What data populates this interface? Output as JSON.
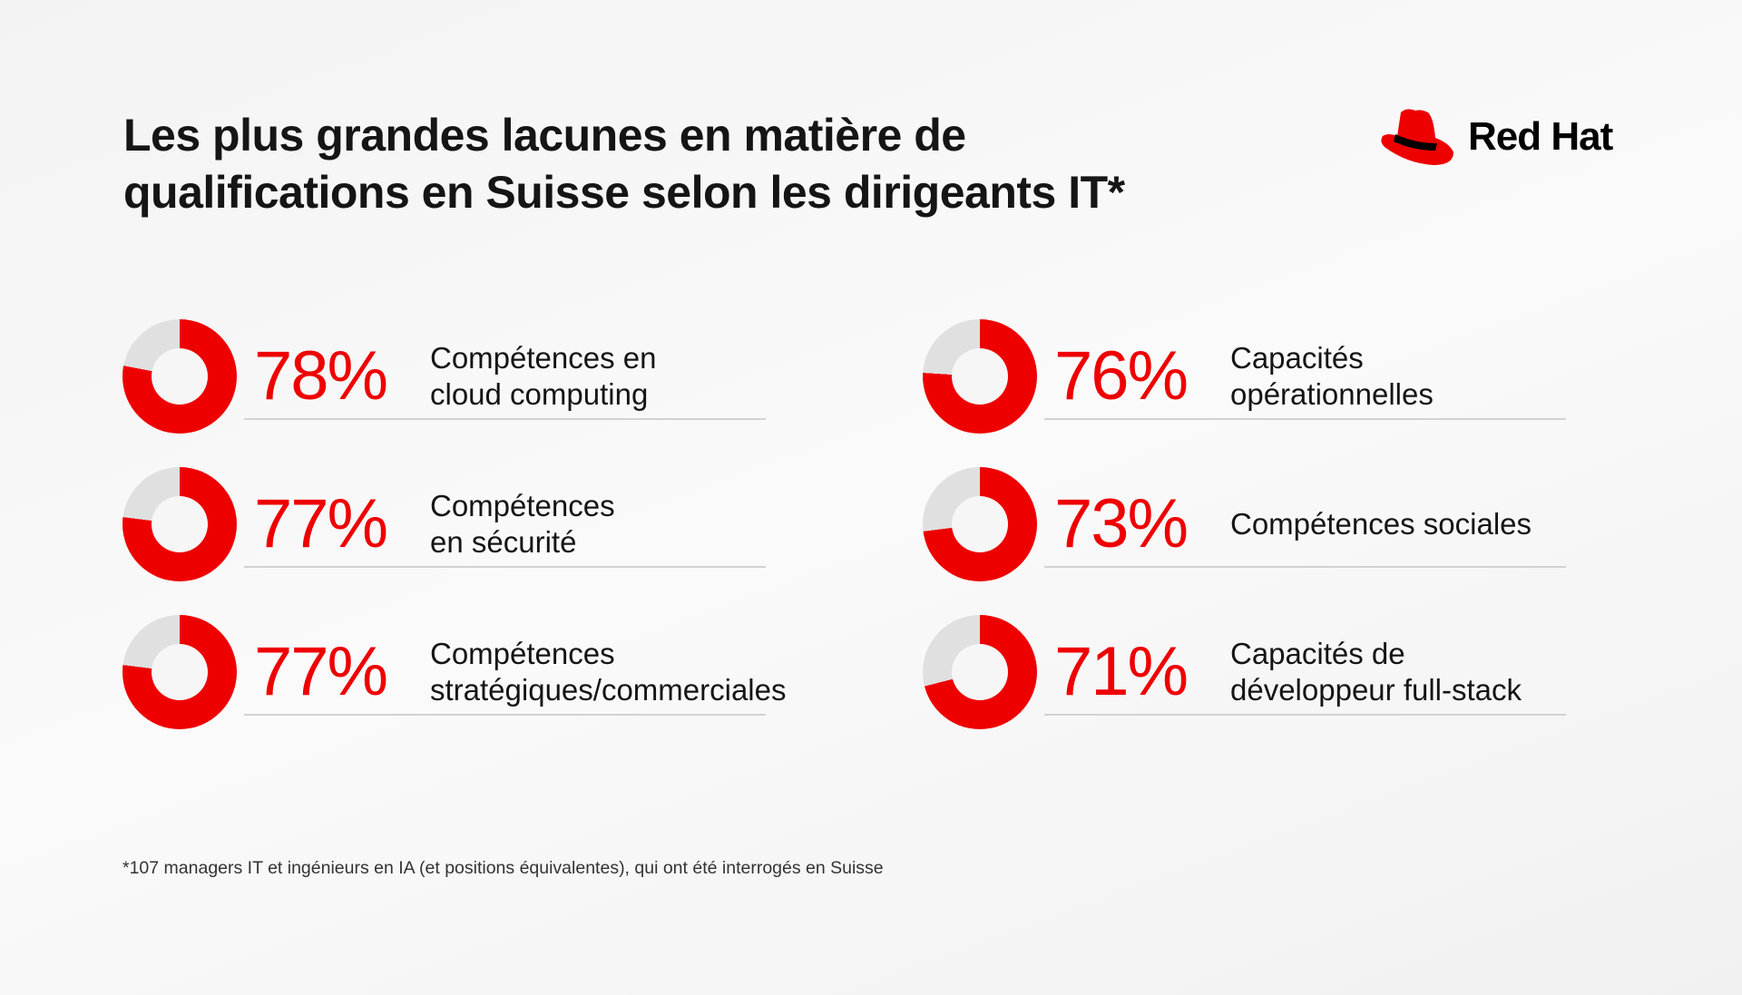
{
  "chart_data": {
    "type": "pie",
    "title": "Les plus grandes lacunes en matière de qualifications en Suisse selon les dirigeants IT*",
    "title_lines": [
      "Les plus grandes lacunes en matière de",
      "qualifications en Suisse selon les dirigeants IT*"
    ],
    "unit": "%",
    "items": [
      {
        "label": "Compétences en\ncloud computing",
        "value": 78,
        "value_text": "78%"
      },
      {
        "label": "Compétences\nen sécurité",
        "value": 77,
        "value_text": "77%"
      },
      {
        "label": "Compétences\nstratégiques/commerciales",
        "value": 77,
        "value_text": "77%"
      },
      {
        "label": "Capacités\nopérationnelles",
        "value": 76,
        "value_text": "76%"
      },
      {
        "label": "Compétences sociales",
        "value": 73,
        "value_text": "73%"
      },
      {
        "label": "Capacités de\ndéveloppeur full-stack",
        "value": 71,
        "value_text": "71%"
      }
    ],
    "colors": {
      "value": "#ee0000",
      "remainder": "#e0e0e0"
    }
  },
  "brand": {
    "name": "Red Hat",
    "icon": "red-hat-fedora-icon"
  },
  "footnote": "*107 managers IT et ingénieurs en IA (et positions équivalentes), qui ont été interrogés en Suisse"
}
